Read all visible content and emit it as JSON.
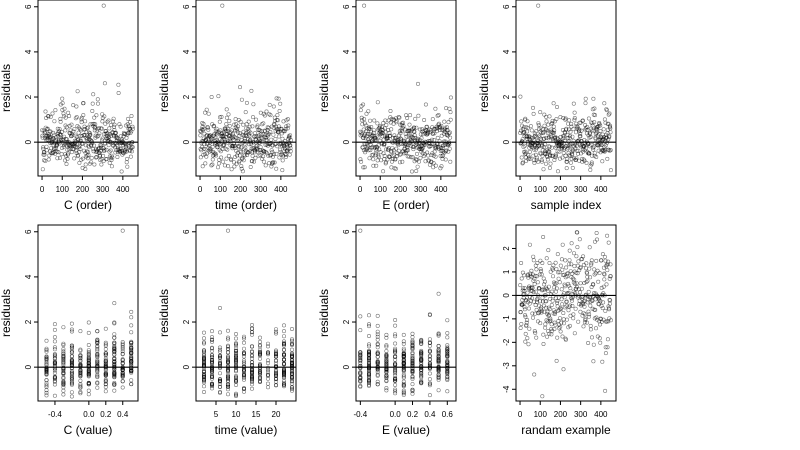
{
  "chart_data": [
    {
      "type": "scatter",
      "xlabel": "C (order)",
      "ylabel": "residuals",
      "xlim": [
        -20,
        475
      ],
      "ylim": [
        -1.5,
        6.3
      ],
      "xticks": [
        0,
        100,
        200,
        300,
        400
      ],
      "yticks": [
        0,
        2,
        4,
        6
      ],
      "hline": 0,
      "x_kind": "index",
      "outlier": {
        "x": 305,
        "y": 6.05
      },
      "points": []
    },
    {
      "type": "scatter",
      "xlabel": "time (order)",
      "ylabel": "residuals",
      "xlim": [
        -20,
        475
      ],
      "ylim": [
        -1.5,
        6.3
      ],
      "xticks": [
        0,
        100,
        200,
        300,
        400
      ],
      "yticks": [
        0,
        2,
        4,
        6
      ],
      "hline": 0,
      "x_kind": "index",
      "outlier": {
        "x": 110,
        "y": 6.05
      },
      "points": []
    },
    {
      "type": "scatter",
      "xlabel": "E (order)",
      "ylabel": "residuals",
      "xlim": [
        -20,
        475
      ],
      "ylim": [
        -1.5,
        6.3
      ],
      "xticks": [
        0,
        100,
        200,
        300,
        400
      ],
      "yticks": [
        0,
        2,
        4,
        6
      ],
      "hline": 0,
      "x_kind": "index",
      "outlier": {
        "x": 20,
        "y": 6.05
      },
      "points": []
    },
    {
      "type": "scatter",
      "xlabel": "sample index",
      "ylabel": "residuals",
      "xlim": [
        -20,
        475
      ],
      "ylim": [
        -1.5,
        6.3
      ],
      "xticks": [
        0,
        100,
        200,
        300,
        400
      ],
      "yticks": [
        0,
        2,
        4,
        6
      ],
      "hline": 0,
      "x_kind": "index",
      "outlier": {
        "x": 90,
        "y": 6.05
      },
      "points": []
    },
    {
      "type": "scatter",
      "xlabel": "C (value)",
      "ylabel": "residuals",
      "xlim": [
        -0.6,
        0.58
      ],
      "ylim": [
        -1.5,
        6.3
      ],
      "xticks": [
        -0.4,
        0.0,
        0.2,
        0.4
      ],
      "xticklabels": [
        "-0.4",
        "0.0",
        "0.2",
        "0.4"
      ],
      "yticks": [
        0,
        2,
        4,
        6
      ],
      "hline": 0,
      "x_kind": "discrete",
      "x_levels": [
        -0.5,
        -0.4,
        -0.3,
        -0.2,
        -0.1,
        0.0,
        0.1,
        0.2,
        0.3,
        0.4,
        0.5
      ],
      "outlier": {
        "x": 0.4,
        "y": 6.05
      },
      "points": []
    },
    {
      "type": "scatter",
      "xlabel": "time (value)",
      "ylabel": "residuals",
      "xlim": [
        0,
        25
      ],
      "ylim": [
        -1.5,
        6.3
      ],
      "xticks": [
        5,
        10,
        15,
        20
      ],
      "yticks": [
        0,
        2,
        4,
        6
      ],
      "hline": 0,
      "x_kind": "discrete",
      "x_levels": [
        2,
        4,
        6,
        8,
        10,
        12,
        14,
        16,
        18,
        20,
        22,
        24
      ],
      "outlier": {
        "x": 8,
        "y": 6.05
      },
      "points": []
    },
    {
      "type": "scatter",
      "xlabel": "E (value)",
      "ylabel": "residuals",
      "xlim": [
        -0.45,
        0.7
      ],
      "ylim": [
        -1.5,
        6.3
      ],
      "xticks": [
        -0.4,
        0.0,
        0.2,
        0.4,
        0.6
      ],
      "xticklabels": [
        "-0.4",
        "0.0",
        "0.2",
        "0.4",
        "0.6"
      ],
      "yticks": [
        0,
        2,
        4,
        6
      ],
      "hline": 0,
      "x_kind": "discrete",
      "x_levels": [
        -0.4,
        -0.3,
        -0.2,
        -0.1,
        0.0,
        0.1,
        0.2,
        0.3,
        0.4,
        0.5,
        0.6
      ],
      "outlier": {
        "x": -0.4,
        "y": 6.05
      },
      "points": []
    },
    {
      "type": "scatter",
      "xlabel": "randam example",
      "ylabel": "residuals",
      "xlim": [
        -20,
        475
      ],
      "ylim": [
        -4.5,
        3.0
      ],
      "xticks": [
        0,
        100,
        200,
        300,
        400
      ],
      "yticks": [
        -4,
        -3,
        -2,
        -1,
        0,
        1,
        2
      ],
      "hline": 0,
      "x_kind": "random",
      "points": []
    }
  ],
  "page": {
    "n_points": 450
  }
}
